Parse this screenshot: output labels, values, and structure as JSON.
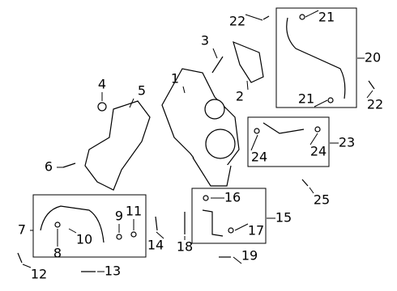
{
  "callouts": [
    {
      "label": "22"
    },
    {
      "label": "21"
    },
    {
      "label": "20"
    },
    {
      "label": "22"
    },
    {
      "label": "21"
    },
    {
      "label": "3"
    },
    {
      "label": "1"
    },
    {
      "label": "2"
    },
    {
      "label": "4"
    },
    {
      "label": "5"
    },
    {
      "label": "6"
    },
    {
      "label": "23"
    },
    {
      "label": "24"
    },
    {
      "label": "24"
    },
    {
      "label": "25"
    },
    {
      "label": "16"
    },
    {
      "label": "15"
    },
    {
      "label": "17"
    },
    {
      "label": "18"
    },
    {
      "label": "19"
    },
    {
      "label": "7"
    },
    {
      "label": "9"
    },
    {
      "label": "11"
    },
    {
      "label": "10"
    },
    {
      "label": "8"
    },
    {
      "label": "14"
    },
    {
      "label": "12"
    },
    {
      "label": "13"
    }
  ]
}
